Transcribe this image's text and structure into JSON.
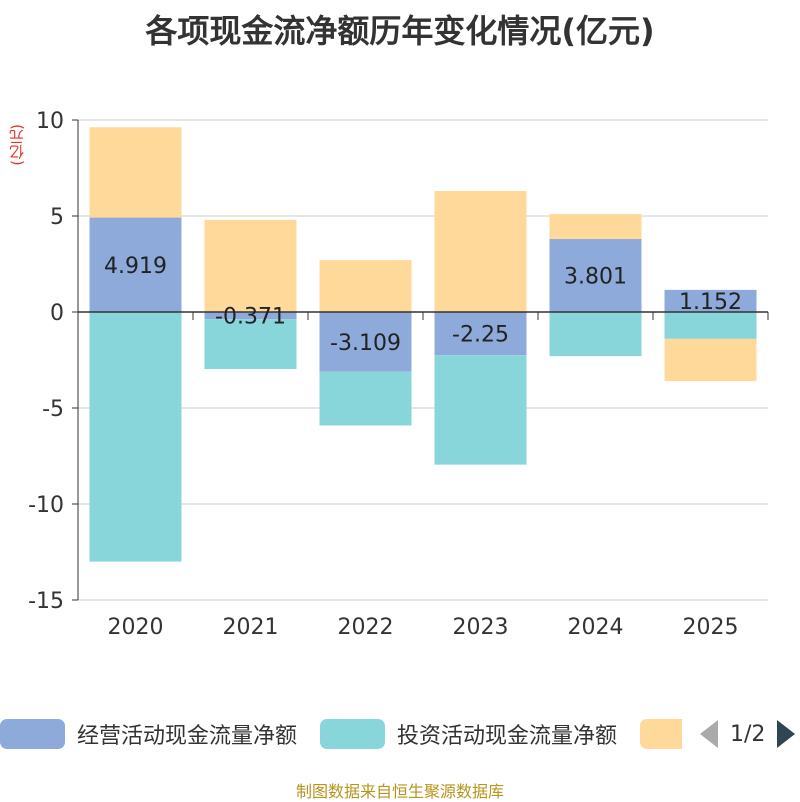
{
  "chart_data": {
    "type": "bar",
    "stacked": true,
    "title": "各项现金流净额历年变化情况(亿元)",
    "ylabel": "(亿元)",
    "ylim": [
      -15,
      10
    ],
    "yticks": [
      10,
      5,
      0,
      -5,
      -10,
      -15
    ],
    "categories": [
      "2020",
      "2021",
      "2022",
      "2023",
      "2024",
      "2025"
    ],
    "series": [
      {
        "name": "经营活动现金流量净额",
        "color": "#8eaadb",
        "values": [
          4.919,
          -0.371,
          -3.109,
          -2.25,
          3.801,
          1.152
        ]
      },
      {
        "name": "投资活动现金流量净额",
        "color": "#88d6da",
        "values": [
          -13.0,
          -2.6,
          -2.8,
          -5.7,
          -2.3,
          -1.4
        ]
      },
      {
        "name": "",
        "color": "#fed999",
        "values": [
          4.7,
          4.8,
          2.7,
          6.3,
          1.3,
          -2.2
        ]
      }
    ],
    "data_labels": [
      "4.919",
      "-0.371",
      "-3.109",
      "-2.25",
      "3.801",
      "1.152"
    ]
  },
  "legend": {
    "items": [
      "经营活动现金流量净额",
      "投资活动现金流量净额",
      ""
    ],
    "page": "1/2"
  },
  "source": "制图数据来自恒生聚源数据库"
}
